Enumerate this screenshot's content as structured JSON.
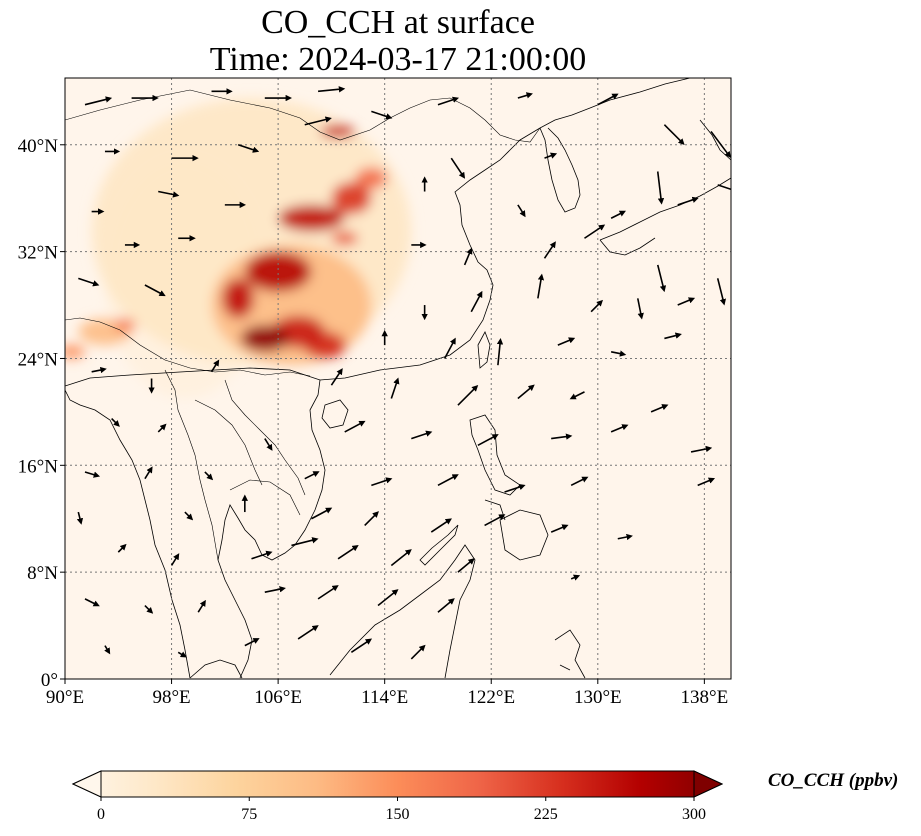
{
  "title": {
    "line1": "CO_CCH at surface",
    "line2": "Time: 2024-03-17 21:00:00"
  },
  "map": {
    "projection": "PlateCarree",
    "extent": {
      "lon_min": 90,
      "lon_max": 140,
      "lat_min": 0,
      "lat_max": 45
    },
    "lon_ticks": [
      {
        "value": 90,
        "label": "90°E"
      },
      {
        "value": 98,
        "label": "98°E"
      },
      {
        "value": 106,
        "label": "106°E"
      },
      {
        "value": 114,
        "label": "114°E"
      },
      {
        "value": 122,
        "label": "122°E"
      },
      {
        "value": 130,
        "label": "130°E"
      },
      {
        "value": 138,
        "label": "138°E"
      }
    ],
    "lat_ticks": [
      {
        "value": 0,
        "label": "0°"
      },
      {
        "value": 8,
        "label": "8°N"
      },
      {
        "value": 16,
        "label": "16°N"
      },
      {
        "value": 24,
        "label": "24°N"
      },
      {
        "value": 32,
        "label": "32°N"
      },
      {
        "value": 40,
        "label": "40°N"
      }
    ],
    "gridlines": true,
    "field_background_color": "#fff5eb",
    "plumes": [
      {
        "lon": 104.0,
        "lat": 33.5,
        "rlon": 12.0,
        "rlat": 10.0,
        "value": 40
      },
      {
        "lon": 99.0,
        "lat": 30.0,
        "rlon": 6.0,
        "rlat": 9.0,
        "value": 15
      },
      {
        "lon": 107.0,
        "lat": 28.0,
        "rlon": 6.0,
        "rlat": 4.5,
        "value": 110
      },
      {
        "lon": 106.0,
        "lat": 30.5,
        "rlon": 2.5,
        "rlat": 1.5,
        "value": 260
      },
      {
        "lon": 105.0,
        "lat": 25.5,
        "rlon": 1.8,
        "rlat": 1.0,
        "value": 290
      },
      {
        "lon": 107.5,
        "lat": 26.0,
        "rlon": 2.0,
        "rlat": 1.2,
        "value": 240
      },
      {
        "lon": 103.0,
        "lat": 28.5,
        "rlon": 1.2,
        "rlat": 1.5,
        "value": 250
      },
      {
        "lon": 109.5,
        "lat": 25.0,
        "rlon": 1.6,
        "rlat": 1.0,
        "value": 230
      },
      {
        "lon": 108.5,
        "lat": 34.5,
        "rlon": 2.5,
        "rlat": 1.0,
        "value": 250
      },
      {
        "lon": 111.5,
        "lat": 36.0,
        "rlon": 1.5,
        "rlat": 1.2,
        "value": 220
      },
      {
        "lon": 113.0,
        "lat": 37.5,
        "rlon": 1.2,
        "rlat": 0.8,
        "value": 180
      },
      {
        "lon": 110.5,
        "lat": 41.0,
        "rlon": 1.3,
        "rlat": 0.5,
        "value": 240
      },
      {
        "lon": 111.0,
        "lat": 33.0,
        "rlon": 1.0,
        "rlat": 0.5,
        "value": 200
      },
      {
        "lon": 93.0,
        "lat": 26.0,
        "rlon": 2.0,
        "rlat": 1.0,
        "value": 110
      },
      {
        "lon": 90.5,
        "lat": 24.5,
        "rlon": 1.0,
        "rlat": 0.5,
        "value": 150
      },
      {
        "lon": 94.5,
        "lat": 26.5,
        "rlon": 0.8,
        "rlat": 0.5,
        "value": 170
      }
    ],
    "wind_vectors": [
      {
        "lon": 91.5,
        "lat": 43.0,
        "u": 2,
        "v": 0.5
      },
      {
        "lon": 95.0,
        "lat": 43.5,
        "u": 2,
        "v": 0
      },
      {
        "lon": 101.0,
        "lat": 44.0,
        "u": 1.5,
        "v": 0
      },
      {
        "lon": 105.0,
        "lat": 43.5,
        "u": 2,
        "v": 0
      },
      {
        "lon": 109.0,
        "lat": 44.0,
        "u": 2,
        "v": 0.2
      },
      {
        "lon": 113.0,
        "lat": 42.5,
        "u": 1.5,
        "v": -0.5
      },
      {
        "lon": 118.0,
        "lat": 43.0,
        "u": 1.5,
        "v": 0.5
      },
      {
        "lon": 124.0,
        "lat": 43.5,
        "u": 1,
        "v": 0.3
      },
      {
        "lon": 130.0,
        "lat": 43.0,
        "u": 1.5,
        "v": 0.8
      },
      {
        "lon": 135.0,
        "lat": 41.5,
        "u": 1.5,
        "v": -1.5
      },
      {
        "lon": 138.5,
        "lat": 41.0,
        "u": 1.5,
        "v": -2
      },
      {
        "lon": 93.0,
        "lat": 39.5,
        "u": 1,
        "v": 0
      },
      {
        "lon": 98.0,
        "lat": 39.0,
        "u": 2,
        "v": 0
      },
      {
        "lon": 103.0,
        "lat": 40.0,
        "u": 1.5,
        "v": -0.5
      },
      {
        "lon": 108.0,
        "lat": 41.5,
        "u": 2,
        "v": 0.5
      },
      {
        "lon": 119.0,
        "lat": 39.0,
        "u": 1,
        "v": -1.5
      },
      {
        "lon": 126.0,
        "lat": 39.0,
        "u": 0.8,
        "v": 0.3
      },
      {
        "lon": 134.5,
        "lat": 38.0,
        "u": 0.3,
        "v": -2.5
      },
      {
        "lon": 139.0,
        "lat": 37.0,
        "u": 1.5,
        "v": -0.5
      },
      {
        "lon": 97.0,
        "lat": 36.5,
        "u": 1.5,
        "v": -0.3
      },
      {
        "lon": 102.0,
        "lat": 35.5,
        "u": 1.5,
        "v": 0
      },
      {
        "lon": 117.0,
        "lat": 36.5,
        "u": 0,
        "v": 1
      },
      {
        "lon": 124.0,
        "lat": 35.5,
        "u": 0.5,
        "v": -0.8
      },
      {
        "lon": 131.0,
        "lat": 34.5,
        "u": 1,
        "v": 0.5
      },
      {
        "lon": 136.0,
        "lat": 35.5,
        "u": 1.5,
        "v": 0.5
      },
      {
        "lon": 92.0,
        "lat": 35.0,
        "u": 0.8,
        "v": 0
      },
      {
        "lon": 94.5,
        "lat": 32.5,
        "u": 1,
        "v": 0
      },
      {
        "lon": 98.5,
        "lat": 33.0,
        "u": 1.2,
        "v": 0
      },
      {
        "lon": 116.0,
        "lat": 32.5,
        "u": 1,
        "v": 0
      },
      {
        "lon": 120.0,
        "lat": 31.0,
        "u": 0.5,
        "v": 1.2
      },
      {
        "lon": 126.0,
        "lat": 31.5,
        "u": 0.8,
        "v": 1.2
      },
      {
        "lon": 129.0,
        "lat": 33.0,
        "u": 1.5,
        "v": 1
      },
      {
        "lon": 134.5,
        "lat": 31.0,
        "u": 0.5,
        "v": -2
      },
      {
        "lon": 139.0,
        "lat": 30.0,
        "u": 0.5,
        "v": -2
      },
      {
        "lon": 91.0,
        "lat": 30.0,
        "u": 1.5,
        "v": -0.5
      },
      {
        "lon": 96.0,
        "lat": 29.5,
        "u": 1.5,
        "v": -0.8
      },
      {
        "lon": 117.0,
        "lat": 28.0,
        "u": 0,
        "v": -1
      },
      {
        "lon": 120.5,
        "lat": 27.5,
        "u": 0.8,
        "v": 1.5
      },
      {
        "lon": 125.5,
        "lat": 28.5,
        "u": 0.3,
        "v": 1.8
      },
      {
        "lon": 129.5,
        "lat": 27.5,
        "u": 0.8,
        "v": 0.8
      },
      {
        "lon": 133.0,
        "lat": 28.5,
        "u": 0.3,
        "v": -1.5
      },
      {
        "lon": 136.0,
        "lat": 28.0,
        "u": 1.2,
        "v": 0.5
      },
      {
        "lon": 114.0,
        "lat": 25.0,
        "u": 0,
        "v": 1
      },
      {
        "lon": 118.5,
        "lat": 24.0,
        "u": 0.8,
        "v": 1.5
      },
      {
        "lon": 122.5,
        "lat": 23.5,
        "u": 0.2,
        "v": 2
      },
      {
        "lon": 127.0,
        "lat": 25.0,
        "u": 1.2,
        "v": 0.5
      },
      {
        "lon": 131.0,
        "lat": 24.5,
        "u": 1,
        "v": -0.2
      },
      {
        "lon": 135.0,
        "lat": 25.5,
        "u": 1.2,
        "v": 0.3
      },
      {
        "lon": 92.0,
        "lat": 23.0,
        "u": 1,
        "v": 0.2
      },
      {
        "lon": 96.5,
        "lat": 22.5,
        "u": 0,
        "v": -1
      },
      {
        "lon": 101.0,
        "lat": 23.0,
        "u": 0.5,
        "v": 0.8
      },
      {
        "lon": 110.0,
        "lat": 22.0,
        "u": 0.8,
        "v": 1.2
      },
      {
        "lon": 114.5,
        "lat": 21.0,
        "u": 0.5,
        "v": 1.5
      },
      {
        "lon": 119.5,
        "lat": 20.5,
        "u": 1.5,
        "v": 1.5
      },
      {
        "lon": 124.0,
        "lat": 21.0,
        "u": 1.2,
        "v": 1
      },
      {
        "lon": 129.0,
        "lat": 21.5,
        "u": -1,
        "v": -0.5
      },
      {
        "lon": 134.0,
        "lat": 20.0,
        "u": 1.2,
        "v": 0.5
      },
      {
        "lon": 93.5,
        "lat": 19.5,
        "u": 0.5,
        "v": -0.5
      },
      {
        "lon": 97.0,
        "lat": 18.5,
        "u": 0.5,
        "v": 0.5
      },
      {
        "lon": 105.0,
        "lat": 18.0,
        "u": 0.5,
        "v": -0.8
      },
      {
        "lon": 111.0,
        "lat": 18.5,
        "u": 1.5,
        "v": 0.8
      },
      {
        "lon": 116.0,
        "lat": 18.0,
        "u": 1.5,
        "v": 0.5
      },
      {
        "lon": 121.0,
        "lat": 17.5,
        "u": 1.5,
        "v": 0.8
      },
      {
        "lon": 126.5,
        "lat": 18.0,
        "u": 1.5,
        "v": 0.2
      },
      {
        "lon": 131.0,
        "lat": 18.5,
        "u": 1.2,
        "v": 0.5
      },
      {
        "lon": 137.0,
        "lat": 17.0,
        "u": 1.5,
        "v": 0.3
      },
      {
        "lon": 91.5,
        "lat": 15.5,
        "u": 1,
        "v": -0.3
      },
      {
        "lon": 96.0,
        "lat": 15.0,
        "u": 0.5,
        "v": 0.8
      },
      {
        "lon": 100.5,
        "lat": 15.5,
        "u": 0.5,
        "v": -0.5
      },
      {
        "lon": 108.0,
        "lat": 15.0,
        "u": 1,
        "v": 0.5
      },
      {
        "lon": 113.0,
        "lat": 14.5,
        "u": 1.5,
        "v": 0.5
      },
      {
        "lon": 118.0,
        "lat": 14.5,
        "u": 1.5,
        "v": 0.8
      },
      {
        "lon": 123.0,
        "lat": 14.0,
        "u": 1.5,
        "v": 0.5
      },
      {
        "lon": 128.0,
        "lat": 14.5,
        "u": 1.2,
        "v": 0.6
      },
      {
        "lon": 137.5,
        "lat": 14.5,
        "u": 1.2,
        "v": 0.5
      },
      {
        "lon": 91.0,
        "lat": 12.5,
        "u": 0.2,
        "v": -0.8
      },
      {
        "lon": 99.0,
        "lat": 12.5,
        "u": 0.5,
        "v": -0.5
      },
      {
        "lon": 103.5,
        "lat": 12.5,
        "u": 0,
        "v": 1.2
      },
      {
        "lon": 108.5,
        "lat": 12.0,
        "u": 1.5,
        "v": 0.8
      },
      {
        "lon": 112.5,
        "lat": 11.5,
        "u": 1,
        "v": 1
      },
      {
        "lon": 117.5,
        "lat": 11.0,
        "u": 1.5,
        "v": 1
      },
      {
        "lon": 121.5,
        "lat": 11.5,
        "u": 1.5,
        "v": 0.8
      },
      {
        "lon": 126.5,
        "lat": 11.0,
        "u": 1.2,
        "v": 0.5
      },
      {
        "lon": 131.5,
        "lat": 10.5,
        "u": 1,
        "v": 0.2
      },
      {
        "lon": 94.0,
        "lat": 9.5,
        "u": 0.5,
        "v": 0.5
      },
      {
        "lon": 98.0,
        "lat": 8.5,
        "u": 0.5,
        "v": 0.8
      },
      {
        "lon": 104.0,
        "lat": 9.0,
        "u": 1.5,
        "v": 0.5
      },
      {
        "lon": 107.0,
        "lat": 10.0,
        "u": 2,
        "v": 0.5
      },
      {
        "lon": 110.5,
        "lat": 9.0,
        "u": 1.5,
        "v": 1
      },
      {
        "lon": 114.5,
        "lat": 8.5,
        "u": 1.5,
        "v": 1.2
      },
      {
        "lon": 119.5,
        "lat": 8.0,
        "u": 1.2,
        "v": 1
      },
      {
        "lon": 128.0,
        "lat": 7.5,
        "u": 0.5,
        "v": 0.2
      },
      {
        "lon": 91.5,
        "lat": 6.0,
        "u": 1,
        "v": -0.5
      },
      {
        "lon": 96.0,
        "lat": 5.5,
        "u": 0.5,
        "v": -0.5
      },
      {
        "lon": 100.0,
        "lat": 5.0,
        "u": 0.5,
        "v": 0.8
      },
      {
        "lon": 105.0,
        "lat": 6.5,
        "u": 1.5,
        "v": 0.3
      },
      {
        "lon": 109.0,
        "lat": 6.0,
        "u": 1.5,
        "v": 1
      },
      {
        "lon": 113.5,
        "lat": 5.5,
        "u": 1.5,
        "v": 1.2
      },
      {
        "lon": 118.0,
        "lat": 5.0,
        "u": 1.2,
        "v": 1
      },
      {
        "lon": 93.0,
        "lat": 2.5,
        "u": 0.3,
        "v": -0.5
      },
      {
        "lon": 98.5,
        "lat": 2.0,
        "u": 0.5,
        "v": -0.3
      },
      {
        "lon": 103.5,
        "lat": 2.5,
        "u": 1,
        "v": 0.5
      },
      {
        "lon": 107.5,
        "lat": 3.0,
        "u": 1.5,
        "v": 1
      },
      {
        "lon": 111.5,
        "lat": 2.0,
        "u": 1.5,
        "v": 1
      },
      {
        "lon": 116.0,
        "lat": 1.5,
        "u": 1,
        "v": 1
      }
    ]
  },
  "colorbar": {
    "label": "CO_CCH (ppbv)",
    "min": 0,
    "max": 300,
    "ticks": [
      {
        "value": 0,
        "label": "0"
      },
      {
        "value": 75,
        "label": "75"
      },
      {
        "value": 150,
        "label": "150"
      },
      {
        "value": 225,
        "label": "225"
      },
      {
        "value": 300,
        "label": "300"
      }
    ],
    "extend": "both",
    "colormap": "OrRd",
    "colormap_stops": [
      "#fff7ec",
      "#fee8c8",
      "#fdd49e",
      "#fdbb84",
      "#fc8d59",
      "#ef6548",
      "#d7301f",
      "#b30000",
      "#7f0000"
    ]
  }
}
